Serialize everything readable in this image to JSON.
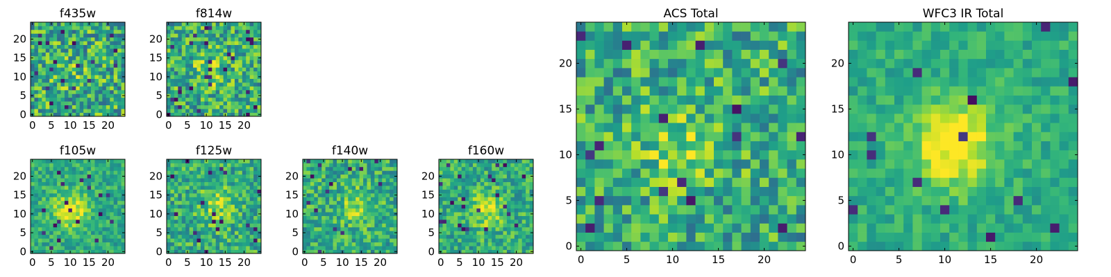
{
  "chart_data": [
    {
      "type": "heatmap",
      "title": "f435w",
      "xticks": [
        "0",
        "5",
        "10",
        "15",
        "20"
      ],
      "yticks": [
        "0",
        "5",
        "10",
        "15",
        "20"
      ],
      "xlim": [
        0,
        24
      ],
      "ylim": [
        0,
        24
      ],
      "grid": false,
      "colormap": "viridis",
      "peak": [
        10,
        11
      ],
      "peak_strength": 0.1,
      "noise": 0.3
    },
    {
      "type": "heatmap",
      "title": "f814w",
      "xticks": [
        "0",
        "5",
        "10",
        "15",
        "20"
      ],
      "yticks": [
        "0",
        "5",
        "10",
        "15",
        "20"
      ],
      "xlim": [
        0,
        24
      ],
      "ylim": [
        0,
        24
      ],
      "grid": false,
      "colormap": "viridis",
      "peak": [
        11,
        11
      ],
      "peak_strength": 0.22,
      "noise": 0.28
    },
    {
      "type": "heatmap",
      "title": "f105w",
      "xticks": [
        "0",
        "5",
        "10",
        "15",
        "20"
      ],
      "yticks": [
        "0",
        "5",
        "10",
        "15",
        "20"
      ],
      "xlim": [
        0,
        24
      ],
      "ylim": [
        0,
        24
      ],
      "grid": false,
      "colormap": "viridis",
      "peak": [
        10,
        11
      ],
      "peak_strength": 0.38,
      "noise": 0.16
    },
    {
      "type": "heatmap",
      "title": "f125w",
      "xticks": [
        "0",
        "5",
        "10",
        "15",
        "20"
      ],
      "yticks": [
        "0",
        "5",
        "10",
        "15",
        "20"
      ],
      "xlim": [
        0,
        24
      ],
      "ylim": [
        0,
        24
      ],
      "grid": false,
      "colormap": "viridis",
      "peak": [
        13,
        12
      ],
      "peak_strength": 0.22,
      "noise": 0.22
    },
    {
      "type": "heatmap",
      "title": "f140w",
      "xticks": [
        "0",
        "5",
        "10",
        "15",
        "20"
      ],
      "yticks": [
        "0",
        "5",
        "10",
        "15",
        "20"
      ],
      "xlim": [
        0,
        24
      ],
      "ylim": [
        0,
        24
      ],
      "grid": false,
      "colormap": "viridis",
      "peak": [
        14,
        12
      ],
      "peak_strength": 0.22,
      "noise": 0.22
    },
    {
      "type": "heatmap",
      "title": "f160w",
      "xticks": [
        "0",
        "5",
        "10",
        "15",
        "20"
      ],
      "yticks": [
        "0",
        "5",
        "10",
        "15",
        "20"
      ],
      "xlim": [
        0,
        24
      ],
      "ylim": [
        0,
        24
      ],
      "grid": false,
      "colormap": "viridis",
      "peak": [
        12,
        11
      ],
      "peak_strength": 0.28,
      "noise": 0.2
    },
    {
      "type": "heatmap",
      "title": "ACS Total",
      "xticks": [
        "0",
        "5",
        "10",
        "15",
        "20"
      ],
      "yticks": [
        "0",
        "5",
        "10",
        "15",
        "20"
      ],
      "xlim": [
        0,
        24
      ],
      "ylim": [
        0,
        24
      ],
      "grid": false,
      "colormap": "viridis",
      "peak": [
        11,
        11
      ],
      "peak_strength": 0.22,
      "noise": 0.26
    },
    {
      "type": "heatmap",
      "title": "WFC3 IR Total",
      "xticks": [
        "0",
        "5",
        "10",
        "15",
        "20"
      ],
      "yticks": [
        "0",
        "5",
        "10",
        "15",
        "20"
      ],
      "xlim": [
        0,
        24
      ],
      "ylim": [
        0,
        24
      ],
      "grid": false,
      "colormap": "viridis",
      "peak": [
        11,
        11
      ],
      "peak_strength": 0.45,
      "noise": 0.12
    }
  ]
}
